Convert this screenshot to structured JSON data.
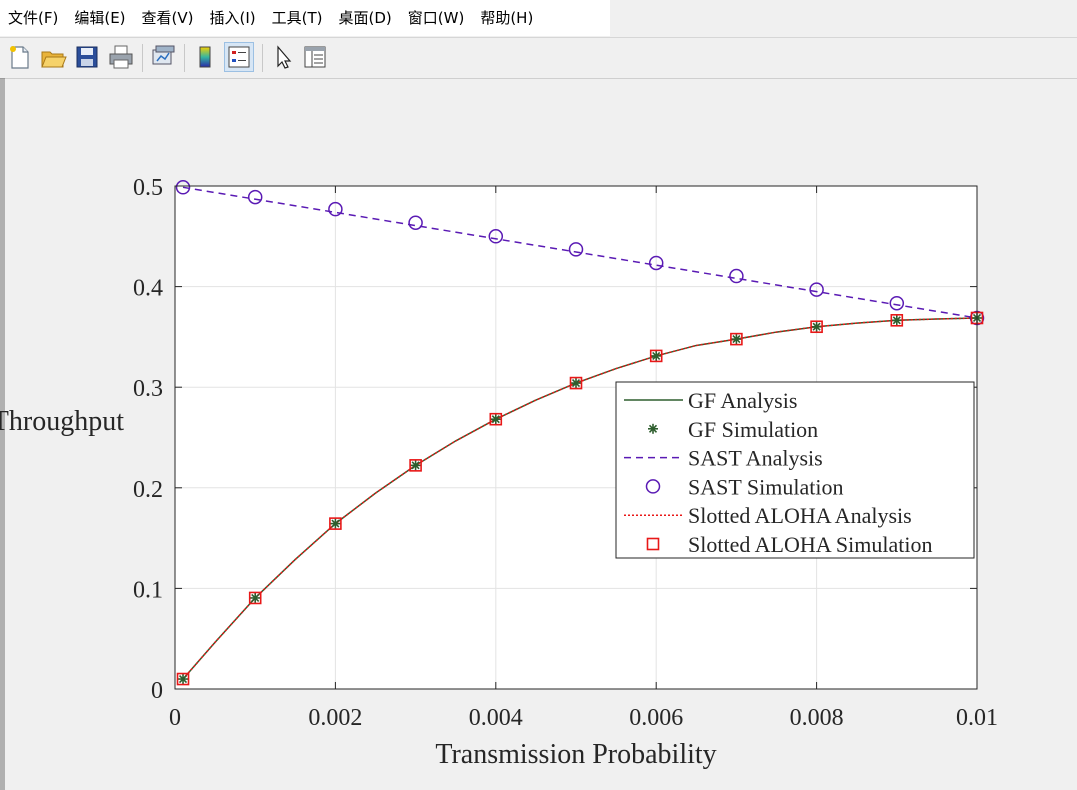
{
  "menu": {
    "items": [
      "文件(F)",
      "编辑(E)",
      "查看(V)",
      "插入(I)",
      "工具(T)",
      "桌面(D)",
      "窗口(W)",
      "帮助(H)"
    ]
  },
  "toolbar": {
    "buttons": [
      {
        "name": "new-figure-icon"
      },
      {
        "name": "open-file-icon"
      },
      {
        "name": "save-icon"
      },
      {
        "name": "print-icon"
      },
      {
        "name": "link-plot-icon"
      },
      {
        "name": "colorbar-icon"
      },
      {
        "name": "legend-icon",
        "active": true
      },
      {
        "name": "select-cursor-icon"
      },
      {
        "name": "property-inspector-icon"
      }
    ]
  },
  "chart_data": {
    "type": "line",
    "xlabel": "Transmission Probability",
    "ylabel": "Throughput",
    "xlim": [
      0,
      0.01
    ],
    "ylim": [
      0,
      0.5
    ],
    "xticks": [
      0,
      0.002,
      0.004,
      0.006,
      0.008,
      0.01
    ],
    "xtick_labels": [
      "0",
      "0.002",
      "0.004",
      "0.006",
      "0.008",
      "0.01"
    ],
    "yticks": [
      0,
      0.1,
      0.2,
      0.3,
      0.4,
      0.5
    ],
    "ytick_labels": [
      "0",
      "0.1",
      "0.2",
      "0.3",
      "0.4",
      "0.5"
    ],
    "grid": true,
    "legend_position": "center-right",
    "series": [
      {
        "name": "GF Analysis",
        "style": "line",
        "color": "#2e5e2e",
        "x": [
          0.0001,
          0.0005,
          0.001,
          0.0015,
          0.002,
          0.0025,
          0.003,
          0.0035,
          0.004,
          0.0045,
          0.005,
          0.0055,
          0.006,
          0.0065,
          0.007,
          0.0075,
          0.008,
          0.0085,
          0.009,
          0.0095,
          0.01
        ],
        "y": [
          0.0099,
          0.0465,
          0.0905,
          0.1288,
          0.1644,
          0.1947,
          0.2223,
          0.2466,
          0.2682,
          0.2872,
          0.3041,
          0.3185,
          0.3311,
          0.3415,
          0.3478,
          0.3548,
          0.3601,
          0.3637,
          0.3665,
          0.3678,
          0.3688
        ]
      },
      {
        "name": "GF Simulation",
        "style": "asterisk",
        "color": "#2e5e2e",
        "x": [
          0.0001,
          0.001,
          0.002,
          0.003,
          0.004,
          0.005,
          0.006,
          0.007,
          0.008,
          0.009,
          0.01
        ],
        "y": [
          0.0099,
          0.0905,
          0.1644,
          0.2223,
          0.2682,
          0.3041,
          0.3311,
          0.3478,
          0.3601,
          0.3665,
          0.3688
        ]
      },
      {
        "name": "SAST Analysis",
        "style": "dashed",
        "color": "#5a1ab4",
        "x": [
          0.0001,
          0.01
        ],
        "y": [
          0.4987,
          0.3688
        ]
      },
      {
        "name": "SAST Simulation",
        "style": "circle",
        "color": "#5a1ab4",
        "x": [
          0.0001,
          0.001,
          0.002,
          0.003,
          0.004,
          0.005,
          0.006,
          0.007,
          0.008,
          0.009,
          0.01
        ],
        "y": [
          0.4987,
          0.489,
          0.477,
          0.4635,
          0.45,
          0.437,
          0.4235,
          0.4105,
          0.397,
          0.3835,
          0.3688
        ]
      },
      {
        "name": "Slotted ALOHA Analysis",
        "style": "dotted",
        "color": "#e81818",
        "x": [
          0.0001,
          0.0005,
          0.001,
          0.0015,
          0.002,
          0.0025,
          0.003,
          0.0035,
          0.004,
          0.0045,
          0.005,
          0.0055,
          0.006,
          0.0065,
          0.007,
          0.0075,
          0.008,
          0.0085,
          0.009,
          0.0095,
          0.01
        ],
        "y": [
          0.0099,
          0.0465,
          0.0905,
          0.1288,
          0.1644,
          0.1947,
          0.2223,
          0.2466,
          0.2682,
          0.2872,
          0.3041,
          0.3185,
          0.3311,
          0.3415,
          0.3478,
          0.3548,
          0.3601,
          0.3637,
          0.3665,
          0.3678,
          0.3688
        ]
      },
      {
        "name": "Slotted ALOHA Simulation",
        "style": "square",
        "color": "#e81818",
        "x": [
          0.0001,
          0.001,
          0.002,
          0.003,
          0.004,
          0.005,
          0.006,
          0.007,
          0.008,
          0.009,
          0.01
        ],
        "y": [
          0.0099,
          0.0905,
          0.1644,
          0.2223,
          0.2682,
          0.3041,
          0.3311,
          0.3478,
          0.3601,
          0.3665,
          0.3688
        ]
      }
    ]
  }
}
